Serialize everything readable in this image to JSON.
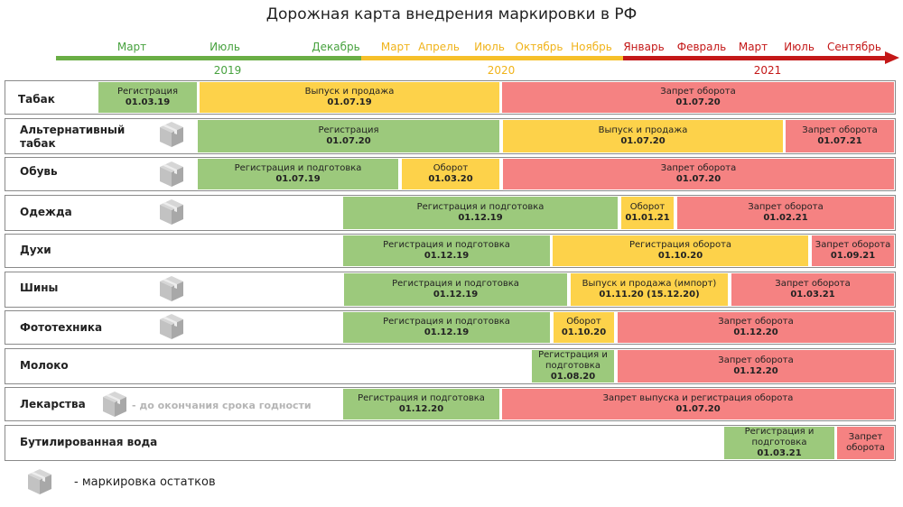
{
  "title": "Дорожная карта внедрения маркировки в РФ",
  "colors": {
    "green": "#6aae45",
    "orange": "#f6c02a",
    "red": "#c41818",
    "seg_green": "#9cc97c",
    "seg_yellow": "#fdd24a",
    "seg_red": "#f58282"
  },
  "timeline": {
    "months": [
      {
        "label": "Март",
        "color": "#48a23f"
      },
      {
        "label": "Июль",
        "color": "#48a23f"
      },
      {
        "label": "Декабрь",
        "color": "#48a23f"
      },
      {
        "label": "Март",
        "color": "#f0b31a"
      },
      {
        "label": "Апрель",
        "color": "#f0b31a"
      },
      {
        "label": "Июль",
        "color": "#f0b31a"
      },
      {
        "label": "Октябрь",
        "color": "#f0b31a"
      },
      {
        "label": "Ноябрь",
        "color": "#f0b31a"
      },
      {
        "label": "Январь",
        "color": "#c41818"
      },
      {
        "label": "Февраль",
        "color": "#c41818"
      },
      {
        "label": "Март",
        "color": "#c41818"
      },
      {
        "label": "Июль",
        "color": "#c41818"
      },
      {
        "label": "Сентябрь",
        "color": "#c41818"
      }
    ],
    "years": [
      {
        "label": "2019",
        "color": "#48a23f"
      },
      {
        "label": "2020",
        "color": "#f0b31a"
      },
      {
        "label": "2021",
        "color": "#c41818"
      }
    ]
  },
  "chart_data": {
    "type": "table",
    "title": "Дорожная карта внедрения маркировки в РФ",
    "rows": [
      {
        "label": [
          "Табак"
        ],
        "icon": false,
        "segments": [
          {
            "status": "g",
            "lines": [
              "Регистрация",
              "01.03.19"
            ]
          },
          {
            "status": "y",
            "lines": [
              "Выпуск и продажа",
              "01.07.19"
            ]
          },
          {
            "status": "r",
            "lines": [
              "Запрет оборота",
              "01.07.20"
            ]
          }
        ]
      },
      {
        "label": [
          "Альтернативный",
          "табак"
        ],
        "icon": true,
        "segments": [
          {
            "status": "g",
            "lines": [
              "Регистрация",
              "01.07.20"
            ]
          },
          {
            "status": "y",
            "lines": [
              "Выпуск и продажа",
              "01.07.20"
            ]
          },
          {
            "status": "r",
            "lines": [
              "Запрет оборота",
              "01.07.21"
            ]
          }
        ]
      },
      {
        "label": [
          "Обувь"
        ],
        "icon": true,
        "segments": [
          {
            "status": "g",
            "lines": [
              "Регистрация и подготовка",
              "01.07.19"
            ]
          },
          {
            "status": "y",
            "lines": [
              "Оборот",
              "01.03.20"
            ]
          },
          {
            "status": "r",
            "lines": [
              "Запрет оборота",
              "01.07.20"
            ]
          }
        ]
      },
      {
        "label": [
          "Одежда"
        ],
        "icon": true,
        "segments": [
          {
            "status": "g",
            "lines": [
              "Регистрация и подготовка",
              "01.12.19"
            ]
          },
          {
            "status": "y",
            "lines": [
              "Оборот",
              "01.01.21"
            ]
          },
          {
            "status": "r",
            "lines": [
              "Запрет оборота",
              "01.02.21"
            ]
          }
        ]
      },
      {
        "label": [
          "Духи"
        ],
        "icon": false,
        "segments": [
          {
            "status": "g",
            "lines": [
              "Регистрация и подготовка",
              "01.12.19"
            ]
          },
          {
            "status": "y",
            "lines": [
              "Регистрация оборота",
              "01.10.20"
            ]
          },
          {
            "status": "r",
            "lines": [
              "Запрет оборота",
              "01.09.21"
            ]
          }
        ]
      },
      {
        "label": [
          "Шины"
        ],
        "icon": true,
        "segments": [
          {
            "status": "g",
            "lines": [
              "Регистрация и подготовка",
              "01.12.19"
            ]
          },
          {
            "status": "y",
            "lines": [
              "Выпуск и продажа (импорт)",
              "01.11.20 (15.12.20)"
            ]
          },
          {
            "status": "r",
            "lines": [
              "Запрет оборота",
              "01.03.21"
            ]
          }
        ]
      },
      {
        "label": [
          "Фототехника"
        ],
        "icon": true,
        "segments": [
          {
            "status": "g",
            "lines": [
              "Регистрация и подготовка",
              "01.12.19"
            ]
          },
          {
            "status": "y",
            "lines": [
              "Оборот",
              "01.10.20"
            ]
          },
          {
            "status": "r",
            "lines": [
              "Запрет оборота",
              "01.12.20"
            ]
          }
        ]
      },
      {
        "label": [
          "Молоко"
        ],
        "icon": false,
        "segments": [
          {
            "status": "g",
            "lines": [
              "Регистрация и",
              "подготовка",
              "01.08.20"
            ]
          },
          {
            "status": "r",
            "lines": [
              "Запрет оборота",
              "01.12.20"
            ]
          }
        ]
      },
      {
        "label": [
          "Лекарства"
        ],
        "icon": true,
        "note": "- до окончания срока годности",
        "segments": [
          {
            "status": "g",
            "lines": [
              "Регистрация и подготовка",
              "01.12.20"
            ]
          },
          {
            "status": "r",
            "lines": [
              "Запрет выпуска и регистрация оборота",
              "01.07.20"
            ]
          }
        ]
      },
      {
        "label": [
          "Бутилированная вода"
        ],
        "icon": false,
        "segments": [
          {
            "status": "g",
            "lines": [
              "Регистрация и",
              "подготовка",
              "01.03.21"
            ]
          },
          {
            "status": "r",
            "lines": [
              "Запрет",
              "оборота"
            ]
          }
        ]
      }
    ]
  },
  "legend": {
    "text": "- маркировка остатков",
    "icon": "box-icon"
  }
}
